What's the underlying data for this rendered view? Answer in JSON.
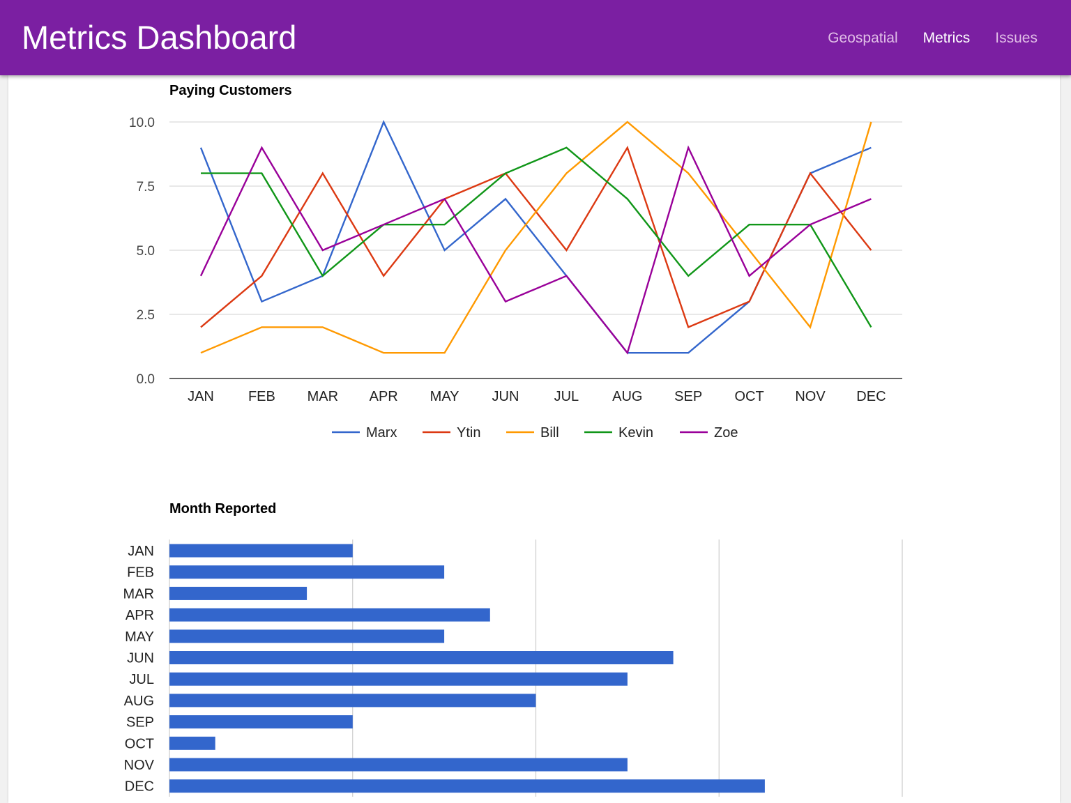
{
  "header": {
    "title": "Metrics Dashboard",
    "nav": [
      {
        "label": "Geospatial",
        "active": false
      },
      {
        "label": "Metrics",
        "active": true
      },
      {
        "label": "Issues",
        "active": false
      }
    ]
  },
  "colors": {
    "appbar": "#7b1fa2",
    "bar": "#3366cc"
  },
  "chart_data": [
    {
      "type": "line",
      "title": "Paying Customers",
      "categories": [
        "JAN",
        "FEB",
        "MAR",
        "APR",
        "MAY",
        "JUN",
        "JUL",
        "AUG",
        "SEP",
        "OCT",
        "NOV",
        "DEC"
      ],
      "ylim": [
        0,
        10
      ],
      "yticks": [
        "0.0",
        "2.5",
        "5.0",
        "7.5",
        "10.0"
      ],
      "grid": true,
      "legend": "bottom",
      "series": [
        {
          "name": "Marx",
          "color": "#3366cc",
          "values": [
            9,
            3,
            4,
            10,
            5,
            7,
            4,
            1,
            1,
            3,
            8,
            9
          ]
        },
        {
          "name": "Ytin",
          "color": "#dc3912",
          "values": [
            2,
            4,
            8,
            4,
            7,
            8,
            5,
            9,
            2,
            3,
            8,
            5
          ]
        },
        {
          "name": "Bill",
          "color": "#ff9900",
          "values": [
            1,
            2,
            2,
            1,
            1,
            5,
            8,
            10,
            8,
            5,
            2,
            10
          ]
        },
        {
          "name": "Kevin",
          "color": "#109618",
          "values": [
            8,
            8,
            4,
            6,
            6,
            8,
            9,
            7,
            4,
            6,
            6,
            2
          ]
        },
        {
          "name": "Zoe",
          "color": "#990099",
          "values": [
            4,
            9,
            5,
            6,
            7,
            3,
            4,
            1,
            9,
            4,
            6,
            7
          ]
        }
      ]
    },
    {
      "type": "bar",
      "orientation": "horizontal",
      "title": "Month Reported",
      "categories": [
        "JAN",
        "FEB",
        "MAR",
        "APR",
        "MAY",
        "JUN",
        "JUL",
        "AUG",
        "SEP",
        "OCT",
        "NOV",
        "DEC"
      ],
      "values": [
        4,
        6,
        3,
        7,
        6,
        11,
        10,
        8,
        4,
        1,
        10,
        13
      ],
      "xlim": [
        0,
        16
      ],
      "grid": true
    }
  ]
}
